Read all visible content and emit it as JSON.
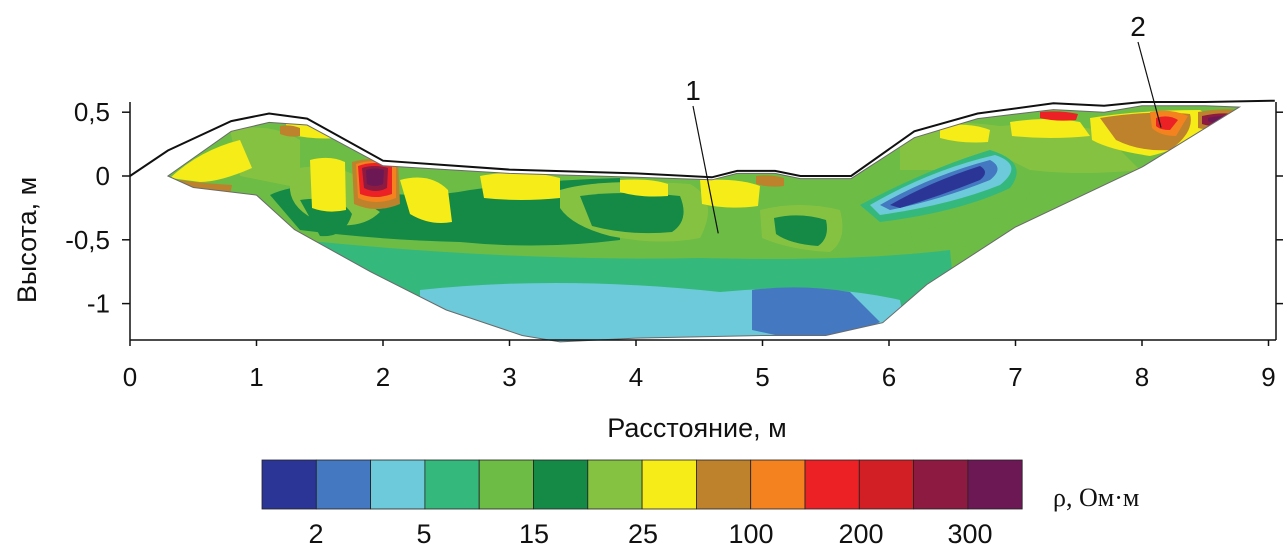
{
  "chart_data": {
    "type": "heatmap",
    "subtype": "filled-contour resistivity cross-section",
    "xlabel": "Расстояние, м",
    "ylabel": "Высота, м",
    "x_ticks": [
      "0",
      "1",
      "2",
      "3",
      "4",
      "5",
      "6",
      "7",
      "8",
      "9"
    ],
    "y_ticks": [
      "0,5",
      "0",
      "-0,5",
      "-1"
    ],
    "xlim": [
      0,
      9.05
    ],
    "ylim": [
      -1.3,
      0.6
    ],
    "grid": false,
    "annotations": [
      {
        "text": "1",
        "points_to": [
          4.65,
          -0.45
        ]
      },
      {
        "text": "2",
        "points_to": [
          8.15,
          0.38
        ]
      }
    ],
    "colorbar": {
      "unit": "ρ, Ом·м",
      "tick_labels": [
        "2",
        "5",
        "15",
        "25",
        "100",
        "200",
        "300"
      ],
      "colors": [
        "#2b3595",
        "#4478c0",
        "#6dcada",
        "#35b87c",
        "#6dbc45",
        "#148a46",
        "#86c241",
        "#f5ec18",
        "#bd822b",
        "#f3821f",
        "#ec2125",
        "#d21f26",
        "#8c1a41",
        "#6c1854"
      ]
    },
    "surface_profile": {
      "x": [
        0,
        0.3,
        0.8,
        1.1,
        1.4,
        2.0,
        3.0,
        4.0,
        4.6,
        4.8,
        5.1,
        5.3,
        5.7,
        6.2,
        6.7,
        7.3,
        7.7,
        8.0,
        8.5,
        9.05
      ],
      "y": [
        0.0,
        0.2,
        0.43,
        0.49,
        0.45,
        0.12,
        0.05,
        0.02,
        -0.01,
        0.04,
        0.04,
        0.0,
        0.0,
        0.35,
        0.49,
        0.57,
        0.55,
        0.58,
        0.58,
        0.59
      ]
    },
    "section_outline": {
      "x": [
        0.3,
        0.8,
        1.1,
        1.4,
        2.0,
        3.0,
        4.0,
        4.6,
        4.8,
        5.1,
        5.3,
        5.7,
        6.2,
        6.7,
        7.3,
        7.7,
        8.0,
        8.5,
        8.77,
        8.0,
        7.0,
        6.3,
        5.95,
        5.5,
        5.0,
        4.0,
        3.4,
        3.1,
        2.5,
        1.9,
        1.3,
        1.0,
        0.5,
        0.3
      ],
      "y": [
        0.0,
        0.35,
        0.42,
        0.4,
        0.08,
        0.02,
        -0.01,
        -0.03,
        0.02,
        0.02,
        -0.02,
        -0.02,
        0.3,
        0.45,
        0.52,
        0.5,
        0.55,
        0.55,
        0.54,
        0.07,
        -0.4,
        -0.85,
        -1.15,
        -1.25,
        -1.25,
        -1.27,
        -1.3,
        -1.25,
        -1.05,
        -0.75,
        -0.42,
        -0.15,
        -0.09,
        0.0
      ]
    }
  }
}
